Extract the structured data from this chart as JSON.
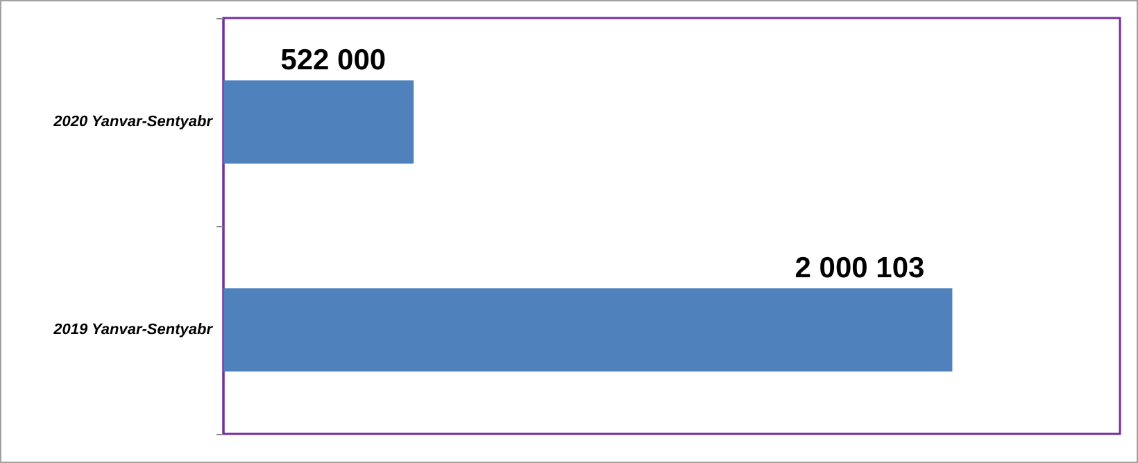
{
  "chart_data": {
    "type": "bar",
    "orientation": "horizontal",
    "categories": [
      "2020 Yanvar-Sentyabr",
      "2019 Yanvar-Sentyabr"
    ],
    "values": [
      522000,
      2000103
    ],
    "value_labels": [
      "522 000",
      "2 000 103"
    ],
    "color": "#4f81bd"
  }
}
